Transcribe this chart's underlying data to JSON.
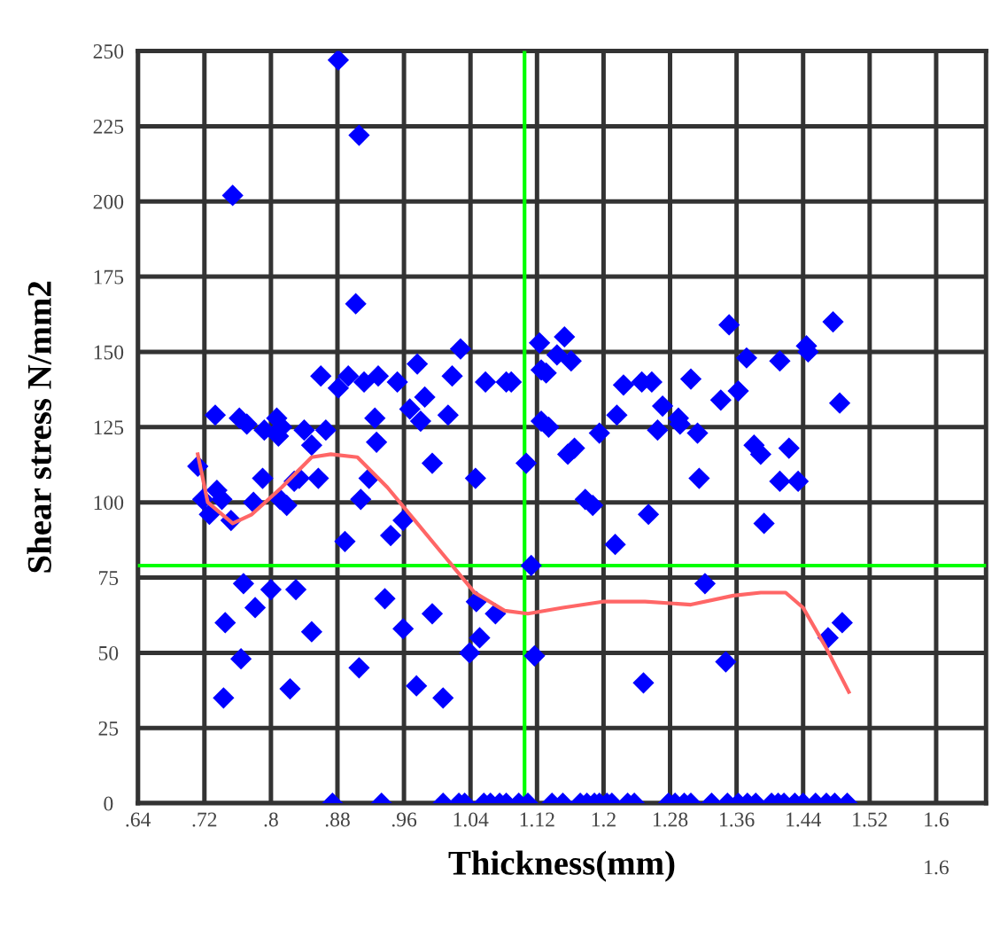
{
  "chart_data": {
    "type": "scatter",
    "xlabel": "Thickness(mm)",
    "ylabel": "Shear stress N/mm2",
    "xlim": [
      0.64,
      1.66
    ],
    "ylim": [
      0,
      250
    ],
    "xticks": [
      {
        "value": 0.64,
        "label": ".64"
      },
      {
        "value": 0.72,
        "label": ".72"
      },
      {
        "value": 0.8,
        "label": ".8"
      },
      {
        "value": 0.88,
        "label": ".88"
      },
      {
        "value": 0.96,
        "label": ".96"
      },
      1.04,
      1.12,
      1.2,
      1.28,
      1.36,
      1.44,
      1.52,
      1.6
    ],
    "annotations": [
      "1.6"
    ],
    "yticks": [
      0,
      25,
      50,
      75,
      100,
      125,
      150,
      175,
      200,
      225,
      250
    ],
    "grid": true,
    "ref_lines": [
      {
        "axis": "x",
        "value": 1.105,
        "color": "#00ff00"
      },
      {
        "axis": "y",
        "value": 79,
        "color": "#00ff00"
      }
    ],
    "series": [
      {
        "type": "scatter",
        "color": "#0000ff",
        "marker": "diamond",
        "x": [
          0.881,
          0.906,
          0.754,
          0.902,
          1.028,
          0.976,
          0.86,
          0.893,
          0.881,
          0.912,
          0.929,
          0.952,
          1.018,
          1.058,
          1.083,
          1.089,
          0.985,
          0.967,
          0.98,
          1.013,
          0.925,
          0.733,
          0.762,
          0.771,
          0.792,
          0.807,
          0.813,
          0.84,
          0.866,
          1.123,
          1.125,
          1.153,
          1.144,
          1.161,
          1.131,
          1.351,
          1.476,
          1.372,
          1.412,
          1.444,
          1.446,
          1.484,
          1.224,
          1.246,
          1.258,
          1.305,
          1.341,
          1.362,
          1.216,
          1.271,
          1.29,
          1.292,
          1.125,
          1.134,
          1.195,
          1.265,
          1.313,
          0.927,
          0.849,
          0.809,
          0.712,
          0.718,
          0.735,
          0.741,
          0.726,
          0.752,
          0.779,
          0.79,
          0.811,
          0.819,
          0.828,
          0.834,
          0.857,
          0.889,
          0.908,
          0.918,
          0.944,
          0.959,
          0.994,
          1.046,
          1.107,
          1.113,
          1.117,
          0.767,
          0.781,
          0.8,
          0.83,
          0.745,
          0.849,
          0.764,
          0.743,
          0.823,
          0.937,
          0.959,
          0.906,
          0.975,
          1.007,
          0.994,
          1.047,
          1.07,
          1.051,
          1.039,
          1.157,
          1.165,
          1.178,
          1.187,
          1.254,
          1.214,
          1.315,
          1.381,
          1.389,
          1.423,
          1.412,
          1.434,
          1.393,
          1.322,
          1.347,
          1.248,
          1.47,
          1.487,
          0.874,
          0.933,
          1.007,
          1.026,
          1.033,
          1.056,
          1.064,
          1.075,
          1.083,
          1.098,
          1.109,
          1.138,
          1.151,
          1.172,
          1.18,
          1.189,
          1.195,
          1.204,
          1.21,
          1.229,
          1.237,
          1.278,
          1.286,
          1.297,
          1.305,
          1.33,
          1.349,
          1.362,
          1.373,
          1.383,
          1.402,
          1.41,
          1.417,
          1.43,
          1.44,
          1.455,
          1.468,
          1.478,
          1.493
        ],
        "values": [
          247,
          222,
          202,
          166,
          151,
          146,
          142,
          142,
          138,
          140,
          142,
          140,
          142,
          140,
          140,
          140,
          135,
          131,
          127,
          129,
          128,
          129,
          128,
          126,
          124,
          128,
          125,
          124,
          124,
          153,
          144,
          155,
          149,
          147,
          143,
          159,
          160,
          148,
          147,
          152,
          150,
          133,
          139,
          140,
          140,
          141,
          134,
          137,
          129,
          132,
          128,
          126,
          127,
          125,
          123,
          124,
          123,
          120,
          119,
          122,
          112,
          101,
          104,
          101,
          96,
          94,
          100,
          108,
          101,
          99,
          107,
          108,
          108,
          87,
          101,
          108,
          89,
          94,
          113,
          108,
          113,
          79,
          49,
          73,
          65,
          71,
          71,
          60,
          57,
          48,
          35,
          38,
          68,
          58,
          45,
          39,
          35,
          63,
          67,
          63,
          55,
          50,
          116,
          118,
          101,
          99,
          96,
          86,
          108,
          119,
          116,
          118,
          107,
          107,
          93,
          73,
          47,
          40,
          55,
          60,
          0,
          0,
          0,
          0,
          0,
          0,
          0,
          0,
          0,
          0,
          0,
          0,
          0,
          0,
          0,
          0,
          0,
          0,
          0,
          0,
          0,
          0,
          0,
          0,
          0,
          0,
          0,
          0,
          0,
          0,
          0,
          0,
          0,
          0,
          0,
          0,
          0,
          0,
          0
        ]
      },
      {
        "type": "line",
        "color": "#ff6666",
        "marker": "none",
        "line_style": "solid",
        "x": [
          0.712,
          0.724,
          0.754,
          0.777,
          0.813,
          0.849,
          0.872,
          0.904,
          0.94,
          0.976,
          1.009,
          1.045,
          1.081,
          1.109,
          1.151,
          1.199,
          1.25,
          1.305,
          1.356,
          1.389,
          1.419,
          1.44,
          1.467,
          1.495
        ],
        "values": [
          116,
          100,
          93,
          96,
          105,
          115,
          116,
          115,
          105,
          93,
          82,
          70,
          64,
          63,
          65,
          67,
          67,
          66,
          69,
          70,
          70,
          65,
          52,
          37
        ]
      }
    ]
  }
}
